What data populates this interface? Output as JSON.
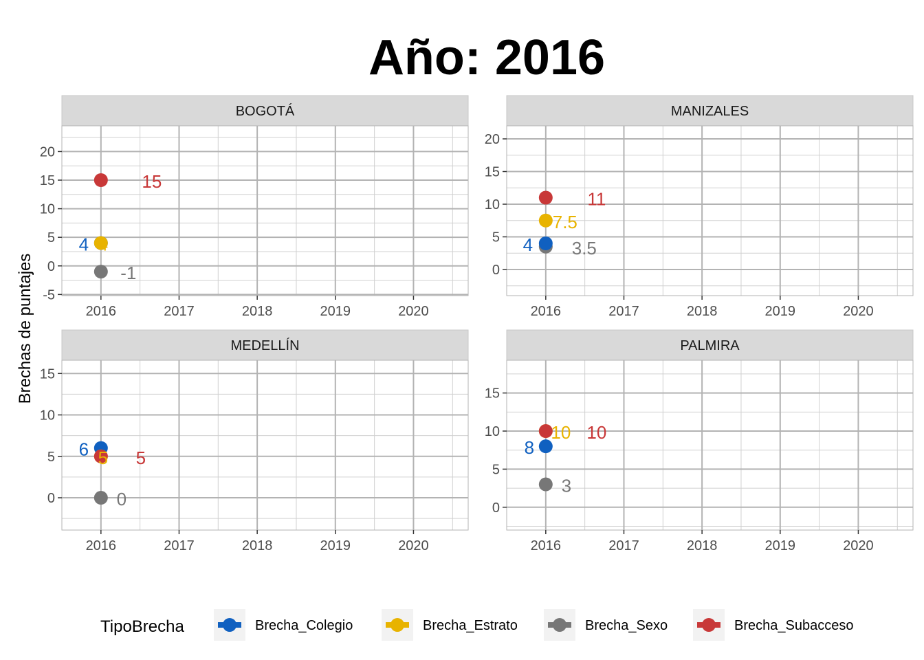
{
  "chart_data": {
    "type": "scatter",
    "title": "Año: 2016",
    "ylabel": "Brechas de puntajes",
    "legend": {
      "title": "TipoBrecha",
      "position": "bottom",
      "entries": [
        {
          "name": "Brecha_Colegio",
          "color": "#1060c0"
        },
        {
          "name": "Brecha_Estrato",
          "color": "#e8b300"
        },
        {
          "name": "Brecha_Sexo",
          "color": "#777777"
        },
        {
          "name": "Brecha_Subacceso",
          "color": "#c83838"
        }
      ]
    },
    "x_ticks": [
      "2016",
      "2017",
      "2018",
      "2019",
      "2020"
    ],
    "xlim": [
      2015.5,
      2020.7
    ],
    "grid": true,
    "panels": [
      {
        "name": "BOGOTÁ",
        "ylim": [
          -5.2,
          24.5
        ],
        "y_ticks": [
          -5,
          0,
          5,
          10,
          15,
          20
        ],
        "y_tick_labels": [
          "-5",
          "0",
          "5",
          "10",
          "15",
          "20"
        ],
        "points": [
          {
            "series": "Brecha_Subacceso",
            "x": 2016,
            "y": 15,
            "label": "15"
          },
          {
            "series": "Brecha_Colegio",
            "x": 2016,
            "y": 4,
            "label": "4"
          },
          {
            "series": "Brecha_Estrato",
            "x": 2016,
            "y": 4,
            "label": "4"
          },
          {
            "series": "Brecha_Sexo",
            "x": 2016,
            "y": -1,
            "label": "-1"
          }
        ]
      },
      {
        "name": "MANIZALES",
        "ylim": [
          -4,
          22
        ],
        "y_ticks": [
          0,
          5,
          10,
          15,
          20
        ],
        "y_tick_labels": [
          "0",
          "5",
          "10",
          "15",
          "20"
        ],
        "points": [
          {
            "series": "Brecha_Subacceso",
            "x": 2016,
            "y": 11,
            "label": "11"
          },
          {
            "series": "Brecha_Estrato",
            "x": 2016,
            "y": 7.5,
            "label": "7.5"
          },
          {
            "series": "Brecha_Colegio",
            "x": 2016,
            "y": 4,
            "label": "4"
          },
          {
            "series": "Brecha_Sexo",
            "x": 2016,
            "y": 3.5,
            "label": "3.5"
          }
        ]
      },
      {
        "name": "MEDELLÍN",
        "ylim": [
          -3.9,
          16.6
        ],
        "y_ticks": [
          0,
          5,
          10,
          15
        ],
        "y_tick_labels": [
          "0",
          "5",
          "10",
          "15"
        ],
        "points": [
          {
            "series": "Brecha_Colegio",
            "x": 2016,
            "y": 6,
            "label": "6"
          },
          {
            "series": "Brecha_Estrato",
            "x": 2016,
            "y": 5,
            "label": "5"
          },
          {
            "series": "Brecha_Subacceso",
            "x": 2016,
            "y": 5,
            "label": "5"
          },
          {
            "series": "Brecha_Sexo",
            "x": 2016,
            "y": 0,
            "label": "0"
          }
        ]
      },
      {
        "name": "PALMIRA",
        "ylim": [
          -3,
          19.3
        ],
        "y_ticks": [
          0,
          5,
          10,
          15
        ],
        "y_tick_labels": [
          "0",
          "5",
          "10",
          "15"
        ],
        "points": [
          {
            "series": "Brecha_Estrato",
            "x": 2016,
            "y": 10,
            "label": "10"
          },
          {
            "series": "Brecha_Subacceso",
            "x": 2016,
            "y": 10,
            "label": "10"
          },
          {
            "series": "Brecha_Colegio",
            "x": 2016,
            "y": 8,
            "label": "8"
          },
          {
            "series": "Brecha_Sexo",
            "x": 2016,
            "y": 3,
            "label": "3"
          }
        ]
      }
    ]
  }
}
